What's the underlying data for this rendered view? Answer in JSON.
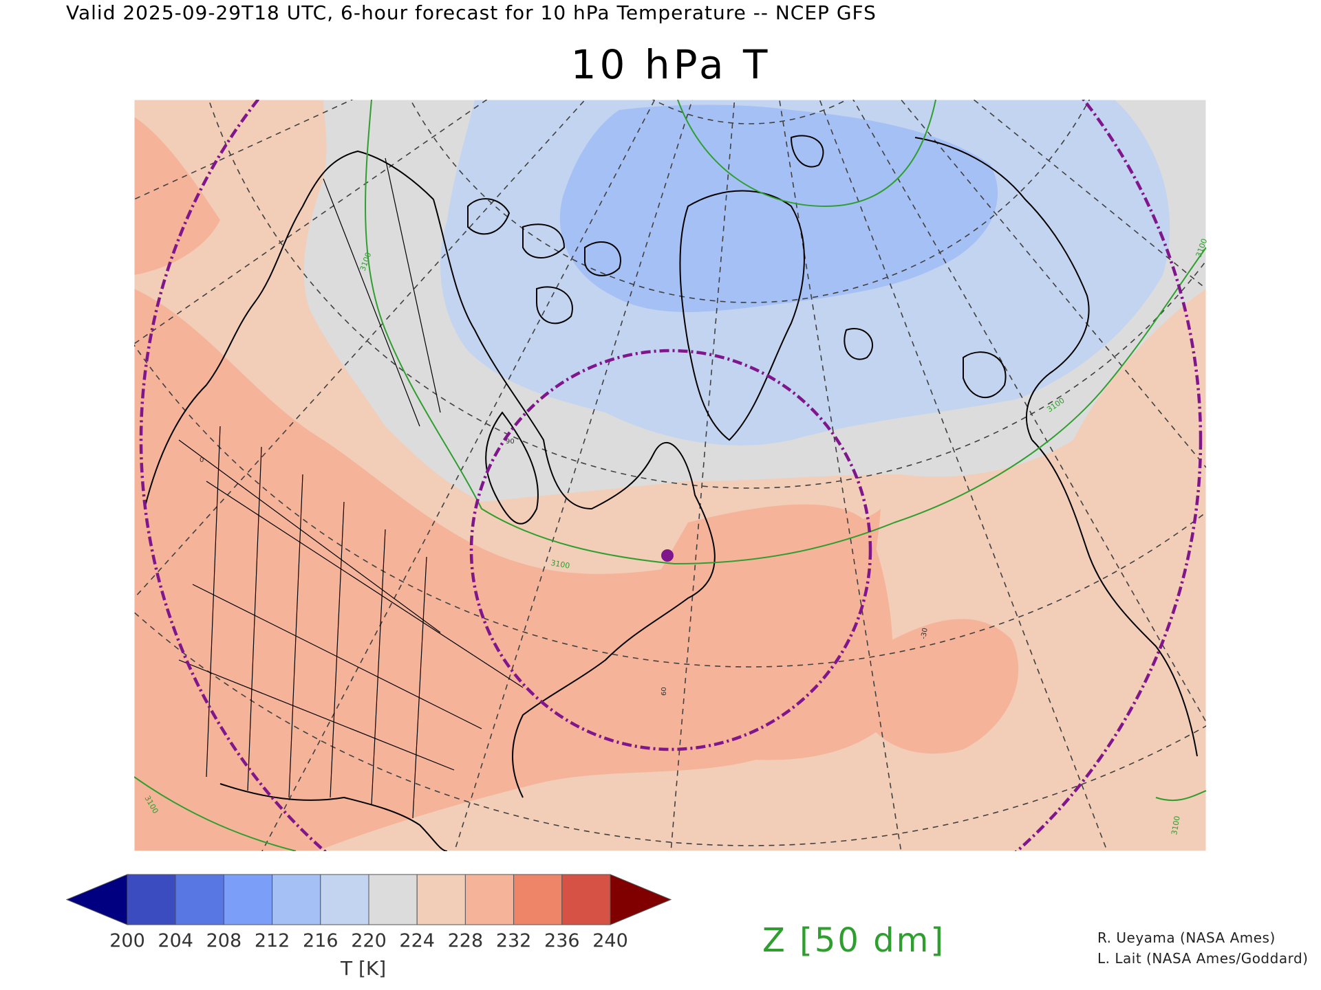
{
  "header": {
    "valid_line": "Valid 2025-09-29T18 UTC, 6-hour forecast for 10 hPa Temperature -- NCEP GFS",
    "title": "10 hPa T"
  },
  "map": {
    "projection": "polar stereographic (north)",
    "regions": "North America, Arctic, North Atlantic, Europe",
    "contour_labels": [
      "3100",
      "3100",
      "3100",
      "3100",
      "3100",
      "3100"
    ],
    "graticule_labels": [
      "0",
      "60",
      "-30",
      "90"
    ],
    "colors": {
      "t228_232": "#f5b399",
      "t224_228": "#f2cdb7",
      "t220_224": "#dcdcdc",
      "t216_220": "#c3d4f0",
      "t212_216": "#a5c0f5",
      "contour_line": "#2e9e2e",
      "vortex_edge": "#80168c",
      "coastline": "#000000",
      "graticule": "#404040"
    }
  },
  "colorbar": {
    "tick_labels": [
      "200",
      "204",
      "208",
      "212",
      "216",
      "220",
      "224",
      "228",
      "232",
      "236",
      "240"
    ],
    "colors": [
      "#000080",
      "#3a4cc0",
      "#5977e3",
      "#7b9ff9",
      "#a5c0f5",
      "#c3d4f0",
      "#dcdcdc",
      "#f2cdb7",
      "#f5b399",
      "#ee8468",
      "#d65244",
      "#800000"
    ],
    "label": "T [K]"
  },
  "overlay": {
    "label": "Z [50 dm]"
  },
  "credits": {
    "line1": "R. Ueyama (NASA Ames)",
    "line2": "L. Lait (NASA Ames/Goddard)"
  }
}
